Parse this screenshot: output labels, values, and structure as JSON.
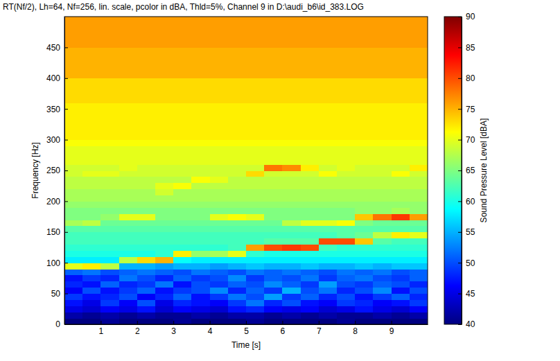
{
  "chart_data": {
    "type": "heatmap",
    "title": "RT(Nf/2), Lh=64, Nf=256, lin. scale, pcolor in dBA, Thld=5%, Channel 9 in D:\\audi_b6\\id_383.LOG",
    "x_label": "Time [s]",
    "y_label": "Frequency [Hz]",
    "xlim": [
      0,
      10
    ],
    "ylim": [
      0,
      500
    ],
    "xticks": [
      1,
      2,
      3,
      4,
      5,
      6,
      7,
      8,
      9
    ],
    "yticks": [
      0,
      50,
      100,
      150,
      200,
      250,
      300,
      350,
      400,
      450
    ],
    "x": [
      0.25,
      0.75,
      1.25,
      1.75,
      2.25,
      2.75,
      3.25,
      3.75,
      4.25,
      4.75,
      5.25,
      5.75,
      6.25,
      6.75,
      7.25,
      7.75,
      8.25,
      8.75,
      9.25,
      9.75
    ],
    "y": [
      5,
      15,
      25,
      35,
      45,
      55,
      65,
      75,
      85,
      95,
      105,
      115,
      125,
      135,
      145,
      155,
      165,
      175,
      185,
      195,
      205,
      215,
      225,
      235,
      245,
      255,
      265,
      275,
      285,
      295,
      305,
      315,
      325,
      335,
      345,
      355,
      365,
      375,
      385,
      395,
      405,
      415,
      425,
      435,
      445,
      455,
      465,
      475,
      485,
      495
    ],
    "z": [
      [
        40,
        40,
        41,
        40,
        40,
        40,
        41,
        40,
        40,
        40,
        41,
        40,
        40,
        40,
        40,
        41,
        40,
        40,
        40,
        40
      ],
      [
        42,
        41,
        42,
        41,
        42,
        41,
        41,
        42,
        41,
        42,
        42,
        41,
        42,
        41,
        42,
        41,
        41,
        42,
        41,
        42
      ],
      [
        45,
        44,
        46,
        45,
        47,
        44,
        46,
        45,
        44,
        47,
        48,
        46,
        45,
        46,
        44,
        45,
        47,
        45,
        44,
        46
      ],
      [
        47,
        45,
        49,
        46,
        50,
        45,
        48,
        47,
        46,
        49,
        52,
        48,
        50,
        47,
        46,
        49,
        48,
        46,
        47,
        49
      ],
      [
        49,
        47,
        48,
        50,
        46,
        48,
        51,
        47,
        49,
        52,
        50,
        54,
        49,
        51,
        48,
        50,
        47,
        49,
        51,
        48
      ],
      [
        46,
        50,
        47,
        49,
        51,
        47,
        49,
        50,
        53,
        48,
        51,
        49,
        55,
        50,
        52,
        48,
        50,
        53,
        47,
        50
      ],
      [
        48,
        47,
        51,
        48,
        49,
        52,
        47,
        50,
        49,
        51,
        50,
        53,
        51,
        49,
        54,
        50,
        49,
        51,
        50,
        48
      ],
      [
        47,
        49,
        48,
        52,
        50,
        48,
        51,
        49,
        50,
        53,
        49,
        51,
        50,
        52,
        49,
        51,
        52,
        50,
        49,
        51
      ],
      [
        51,
        52,
        50,
        51,
        52,
        51,
        50,
        52,
        51,
        50,
        52,
        51,
        52,
        51,
        50,
        52,
        51,
        52,
        50,
        51
      ],
      [
        70,
        72,
        68,
        55,
        55,
        54,
        55,
        55,
        54,
        55,
        56,
        55,
        55,
        56,
        55,
        55,
        56,
        55,
        56,
        56
      ],
      [
        58,
        58,
        58,
        68,
        73,
        75,
        59,
        58,
        58,
        58,
        58,
        58,
        58,
        58,
        58,
        58,
        58,
        58,
        58,
        58
      ],
      [
        60,
        60,
        60,
        60,
        60,
        61,
        72,
        66,
        67,
        70,
        61,
        60,
        60,
        60,
        60,
        60,
        60,
        60,
        60,
        60
      ],
      [
        61,
        61,
        61,
        61,
        61,
        61,
        61,
        61,
        61,
        62,
        76,
        80,
        81,
        80,
        62,
        61,
        61,
        61,
        61,
        61
      ],
      [
        62,
        62,
        62,
        62,
        62,
        62,
        62,
        62,
        62,
        62,
        62,
        63,
        63,
        63,
        80,
        80,
        74,
        63,
        62,
        62
      ],
      [
        62,
        62,
        62,
        62,
        62,
        62,
        62,
        62,
        62,
        62,
        62,
        62,
        62,
        62,
        62,
        63,
        64,
        68,
        72,
        70
      ],
      [
        63,
        63,
        63,
        63,
        63,
        63,
        63,
        63,
        63,
        63,
        63,
        63,
        63,
        63,
        63,
        63,
        63,
        63,
        63,
        63
      ],
      [
        67,
        68,
        64,
        64,
        64,
        64,
        64,
        64,
        64,
        64,
        64,
        64,
        68,
        70,
        70,
        71,
        65,
        64,
        64,
        64
      ],
      [
        65,
        65,
        66,
        70,
        70,
        65,
        65,
        65,
        70,
        71,
        70,
        65,
        65,
        65,
        65,
        65,
        74,
        78,
        81,
        76
      ],
      [
        65,
        65,
        65,
        65,
        65,
        65,
        65,
        65,
        65,
        65,
        65,
        65,
        65,
        65,
        65,
        65,
        66,
        66,
        67,
        66
      ],
      [
        66,
        66,
        66,
        66,
        66,
        66,
        66,
        66,
        66,
        66,
        66,
        66,
        66,
        66,
        66,
        66,
        66,
        66,
        66,
        66
      ],
      [
        67,
        67,
        67,
        67,
        67,
        67,
        67,
        67,
        67,
        67,
        67,
        67,
        67,
        67,
        67,
        67,
        67,
        67,
        67,
        67
      ],
      [
        67,
        67,
        67,
        67,
        67,
        69,
        67,
        67,
        67,
        67,
        67,
        67,
        67,
        67,
        67,
        67,
        67,
        67,
        67,
        67
      ],
      [
        68,
        68,
        68,
        68,
        68,
        70,
        71,
        68,
        68,
        68,
        68,
        68,
        68,
        68,
        68,
        68,
        68,
        68,
        68,
        68
      ],
      [
        68,
        68,
        68,
        68,
        68,
        68,
        68,
        71,
        70,
        68,
        68,
        68,
        68,
        68,
        68,
        68,
        68,
        68,
        68,
        68
      ],
      [
        69,
        70,
        70,
        69,
        69,
        69,
        69,
        69,
        69,
        69,
        73,
        69,
        69,
        69,
        71,
        69,
        69,
        69,
        71,
        69
      ],
      [
        69,
        69,
        69,
        70,
        69,
        69,
        69,
        69,
        69,
        69,
        69,
        78,
        77,
        72,
        69,
        70,
        69,
        69,
        69,
        72
      ],
      [
        70,
        70,
        70,
        70,
        70,
        70,
        70,
        70,
        70,
        70,
        70,
        70,
        70,
        70,
        70,
        70,
        70,
        70,
        70,
        70
      ],
      [
        70,
        70,
        70,
        70,
        70,
        70,
        70,
        70,
        70,
        70,
        70,
        70,
        70,
        70,
        70,
        70,
        70,
        70,
        70,
        70
      ],
      [
        70,
        70,
        70,
        70,
        70,
        70,
        70,
        70,
        70,
        70,
        70,
        70,
        70,
        70,
        70,
        70,
        70,
        70,
        70,
        70
      ],
      [
        71,
        71,
        71,
        71,
        71,
        71,
        71,
        71,
        71,
        71,
        71,
        71,
        71,
        71,
        71,
        71,
        71,
        71,
        71,
        71
      ],
      [
        72,
        72,
        72,
        72,
        72,
        72,
        72,
        72,
        72,
        72,
        72,
        72,
        72,
        72,
        72,
        72,
        72,
        72,
        72,
        72
      ],
      [
        72,
        72,
        72,
        72,
        72,
        72,
        72,
        72,
        72,
        72,
        72,
        72,
        72,
        72,
        72,
        72,
        72,
        72,
        72,
        72
      ],
      [
        72,
        72,
        72,
        72,
        72,
        72,
        72,
        72,
        72,
        72,
        72,
        72,
        72,
        72,
        72,
        72,
        72,
        72,
        72,
        72
      ],
      [
        72,
        72,
        72,
        72,
        72,
        72,
        72,
        72,
        72,
        72,
        72,
        72,
        72,
        72,
        72,
        72,
        72,
        72,
        72,
        72
      ],
      [
        72,
        72,
        72,
        72,
        72,
        72,
        72,
        72,
        72,
        72,
        72,
        72,
        72,
        72,
        72,
        72,
        72,
        72,
        72,
        72
      ],
      [
        72,
        72,
        72,
        72,
        72,
        72,
        72,
        72,
        72,
        72,
        72,
        72,
        72,
        72,
        72,
        72,
        72,
        72,
        72,
        72
      ],
      [
        73,
        73,
        73,
        73,
        73,
        73,
        73,
        73,
        73,
        73,
        73,
        73,
        73,
        73,
        73,
        73,
        73,
        73,
        73,
        73
      ],
      [
        73,
        73,
        73,
        73,
        73,
        73,
        73,
        73,
        73,
        73,
        73,
        73,
        73,
        73,
        73,
        73,
        73,
        73,
        73,
        73
      ],
      [
        73,
        73,
        73,
        73,
        73,
        73,
        73,
        73,
        73,
        73,
        73,
        73,
        73,
        73,
        73,
        73,
        73,
        73,
        73,
        73
      ],
      [
        73,
        73,
        73,
        73,
        73,
        73,
        73,
        73,
        73,
        73,
        73,
        73,
        73,
        73,
        73,
        73,
        73,
        73,
        73,
        73
      ],
      [
        75,
        75,
        75,
        75,
        75,
        75,
        75,
        75,
        75,
        75,
        75,
        75,
        75,
        75,
        75,
        75,
        75,
        75,
        75,
        75
      ],
      [
        75,
        75,
        75,
        75,
        75,
        75,
        75,
        75,
        75,
        75,
        75,
        75,
        75,
        75,
        75,
        75,
        75,
        75,
        75,
        75
      ],
      [
        75,
        75,
        75,
        75,
        75,
        75,
        75,
        75,
        75,
        75,
        75,
        75,
        75,
        75,
        75,
        75,
        75,
        75,
        75,
        75
      ],
      [
        75,
        75,
        75,
        75,
        75,
        75,
        75,
        75,
        75,
        75,
        75,
        75,
        75,
        75,
        75,
        75,
        75,
        75,
        75,
        75
      ],
      [
        75,
        75,
        75,
        75,
        75,
        75,
        75,
        75,
        75,
        75,
        75,
        75,
        75,
        75,
        75,
        75,
        75,
        75,
        75,
        75
      ],
      [
        76,
        76,
        76,
        76,
        76,
        76,
        76,
        76,
        76,
        76,
        76,
        76,
        76,
        76,
        76,
        76,
        76,
        76,
        76,
        76
      ],
      [
        76,
        76,
        76,
        76,
        76,
        76,
        76,
        76,
        76,
        76,
        76,
        76,
        76,
        76,
        76,
        76,
        76,
        76,
        76,
        76
      ],
      [
        76,
        76,
        76,
        76,
        76,
        76,
        76,
        76,
        76,
        76,
        76,
        76,
        76,
        76,
        76,
        76,
        76,
        76,
        76,
        76
      ],
      [
        76,
        76,
        76,
        76,
        76,
        76,
        76,
        76,
        76,
        76,
        76,
        76,
        76,
        76,
        76,
        76,
        76,
        76,
        76,
        76
      ],
      [
        76,
        76,
        76,
        76,
        76,
        76,
        76,
        76,
        76,
        76,
        76,
        76,
        76,
        76,
        76,
        76,
        76,
        76,
        76,
        76
      ]
    ],
    "colorbar": {
      "label": "Sound Pressure Level [dBA]",
      "range": [
        40,
        90
      ],
      "ticks": [
        40,
        45,
        50,
        55,
        60,
        65,
        70,
        75,
        80,
        85,
        90
      ]
    }
  }
}
